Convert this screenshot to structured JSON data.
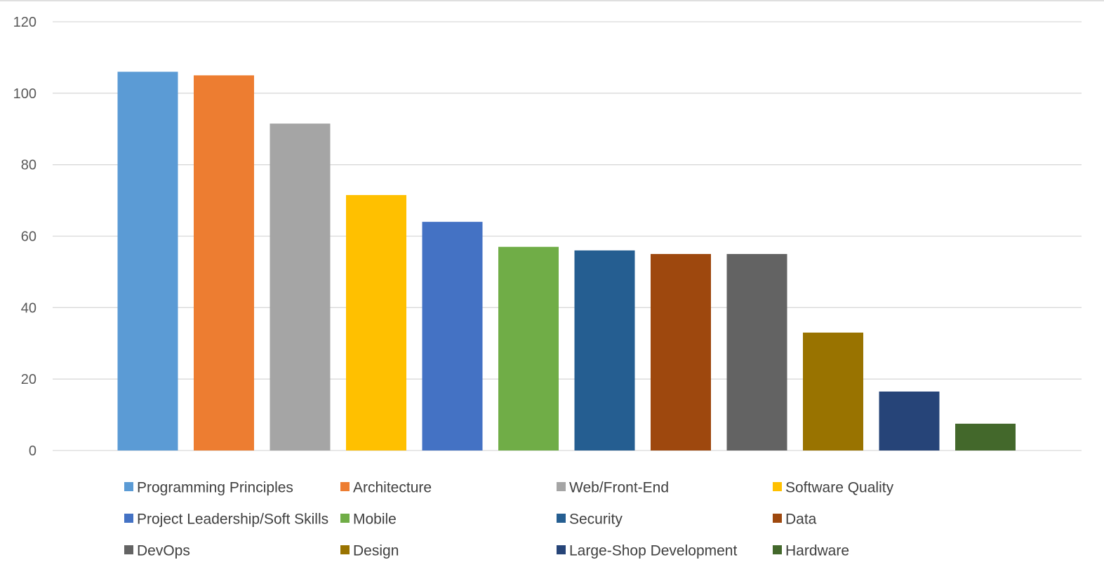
{
  "chart_data": {
    "type": "bar",
    "title": "",
    "xlabel": "",
    "ylabel": "",
    "ylim": [
      0,
      120
    ],
    "yticks": [
      0,
      20,
      40,
      60,
      80,
      100,
      120
    ],
    "grid": true,
    "legend_position": "bottom",
    "categories": [
      "Programming Principles",
      "Architecture",
      "Web/Front-End",
      "Software Quality",
      "Project Leadership/Soft Skills",
      "Mobile",
      "Security",
      "Data",
      "DevOps",
      "Design",
      "Large-Shop Development",
      "Hardware"
    ],
    "values": [
      106,
      105,
      91.5,
      71.5,
      64,
      57,
      56,
      55,
      55,
      33,
      16.5,
      7.5
    ],
    "colors": [
      "#5b9bd5",
      "#ed7d31",
      "#a5a5a5",
      "#ffc000",
      "#4472c4",
      "#70ad47",
      "#255e91",
      "#9e480e",
      "#636363",
      "#997300",
      "#264478",
      "#43682b"
    ]
  }
}
